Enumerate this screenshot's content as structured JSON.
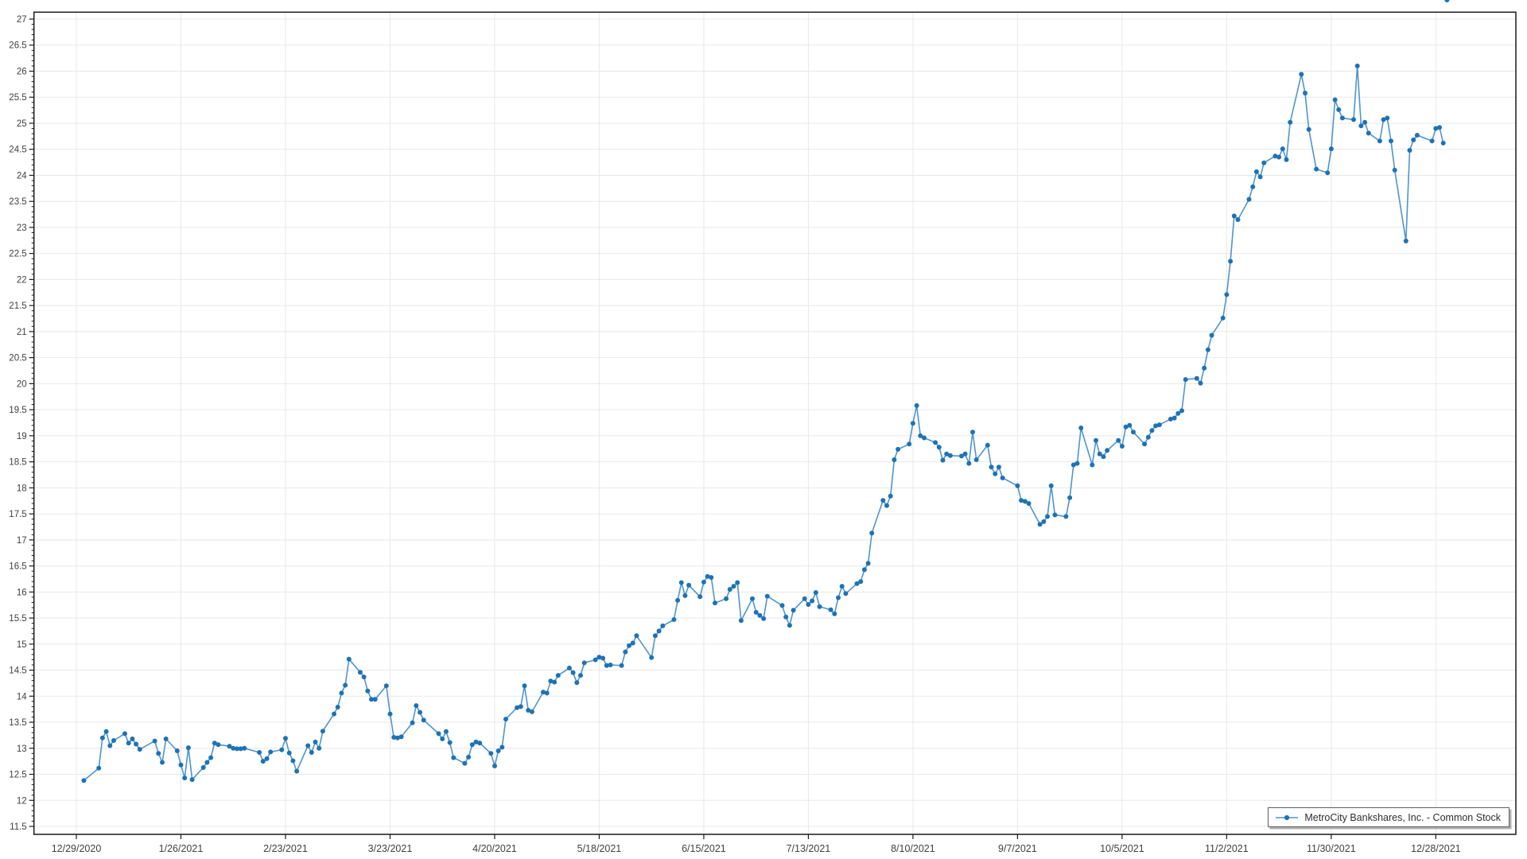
{
  "legend": {
    "label": "MetroCity Bankshares, Inc. - Common Stock"
  },
  "colors": {
    "line": "#4e95cf",
    "marker": "#1e72b4",
    "grid": "#e8e8e8",
    "axis": "#1a1a1a",
    "tick_label": "#404040",
    "background": "#ffffff"
  },
  "y_axis": {
    "min": 11.5,
    "max": 27,
    "major_step": 0.5,
    "minor_step": 0.1,
    "tick_labels": [
      "27",
      "26.5",
      "26",
      "25.5",
      "25",
      "24.5",
      "24",
      "23.5",
      "23",
      "22.5",
      "22",
      "21.5",
      "21",
      "20.5",
      "20",
      "19.5",
      "19",
      "18.5",
      "18",
      "17.5",
      "17",
      "16.5",
      "16",
      "15.5",
      "15",
      "14.5",
      "14",
      "13.5",
      "13",
      "12.5",
      "12",
      "11.5"
    ]
  },
  "x_axis": {
    "tick_labels": [
      "12/29/2020",
      "1/26/2021",
      "2/23/2021",
      "3/23/2021",
      "4/20/2021",
      "5/18/2021",
      "6/15/2021",
      "7/13/2021",
      "8/10/2021",
      "9/7/2021",
      "10/5/2021",
      "11/2/2021",
      "11/30/2021",
      "12/28/2021"
    ]
  },
  "chart_data": {
    "type": "line",
    "title": "",
    "xlabel": "",
    "ylabel": "",
    "ylim": [
      11.5,
      27
    ],
    "grid": true,
    "legend_position": "bottom-right",
    "marker": "circle",
    "series": [
      {
        "name": "MetroCity Bankshares, Inc. - Common Stock",
        "dates": [
          "12/31/2020",
          "1/4/2021",
          "1/5/2021",
          "1/6/2021",
          "1/7/2021",
          "1/8/2021",
          "1/11/2021",
          "1/12/2021",
          "1/13/2021",
          "1/14/2021",
          "1/15/2021",
          "1/19/2021",
          "1/20/2021",
          "1/21/2021",
          "1/22/2021",
          "1/25/2021",
          "1/26/2021",
          "1/27/2021",
          "1/28/2021",
          "1/29/2021",
          "2/1/2021",
          "2/2/2021",
          "2/3/2021",
          "2/4/2021",
          "2/5/2021",
          "2/8/2021",
          "2/9/2021",
          "2/10/2021",
          "2/11/2021",
          "2/12/2021",
          "2/16/2021",
          "2/17/2021",
          "2/18/2021",
          "2/19/2021",
          "2/22/2021",
          "2/23/2021",
          "2/24/2021",
          "2/25/2021",
          "2/26/2021",
          "3/1/2021",
          "3/2/2021",
          "3/3/2021",
          "3/4/2021",
          "3/5/2021",
          "3/8/2021",
          "3/9/2021",
          "3/10/2021",
          "3/11/2021",
          "3/12/2021",
          "3/15/2021",
          "3/16/2021",
          "3/17/2021",
          "3/18/2021",
          "3/19/2021",
          "3/22/2021",
          "3/23/2021",
          "3/24/2021",
          "3/25/2021",
          "3/26/2021",
          "3/29/2021",
          "3/30/2021",
          "3/31/2021",
          "4/1/2021",
          "4/5/2021",
          "4/6/2021",
          "4/7/2021",
          "4/8/2021",
          "4/9/2021",
          "4/12/2021",
          "4/13/2021",
          "4/14/2021",
          "4/15/2021",
          "4/16/2021",
          "4/19/2021",
          "4/20/2021",
          "4/21/2021",
          "4/22/2021",
          "4/23/2021",
          "4/26/2021",
          "4/27/2021",
          "4/28/2021",
          "4/29/2021",
          "4/30/2021",
          "5/3/2021",
          "5/4/2021",
          "5/5/2021",
          "5/6/2021",
          "5/7/2021",
          "5/10/2021",
          "5/11/2021",
          "5/12/2021",
          "5/13/2021",
          "5/14/2021",
          "5/17/2021",
          "5/18/2021",
          "5/19/2021",
          "5/20/2021",
          "5/21/2021",
          "5/24/2021",
          "5/25/2021",
          "5/26/2021",
          "5/27/2021",
          "5/28/2021",
          "6/1/2021",
          "6/2/2021",
          "6/3/2021",
          "6/4/2021",
          "6/7/2021",
          "6/8/2021",
          "6/9/2021",
          "6/10/2021",
          "6/11/2021",
          "6/14/2021",
          "6/15/2021",
          "6/16/2021",
          "6/17/2021",
          "6/18/2021",
          "6/21/2021",
          "6/22/2021",
          "6/23/2021",
          "6/24/2021",
          "6/25/2021",
          "6/28/2021",
          "6/29/2021",
          "6/30/2021",
          "7/1/2021",
          "7/2/2021",
          "7/6/2021",
          "7/7/2021",
          "7/8/2021",
          "7/9/2021",
          "7/12/2021",
          "7/13/2021",
          "7/14/2021",
          "7/15/2021",
          "7/16/2021",
          "7/19/2021",
          "7/20/2021",
          "7/21/2021",
          "7/22/2021",
          "7/23/2021",
          "7/26/2021",
          "7/27/2021",
          "7/28/2021",
          "7/29/2021",
          "7/30/2021",
          "8/2/2021",
          "8/3/2021",
          "8/4/2021",
          "8/5/2021",
          "8/6/2021",
          "8/9/2021",
          "8/10/2021",
          "8/11/2021",
          "8/12/2021",
          "8/13/2021",
          "8/16/2021",
          "8/17/2021",
          "8/18/2021",
          "8/19/2021",
          "8/20/2021",
          "8/23/2021",
          "8/24/2021",
          "8/25/2021",
          "8/26/2021",
          "8/27/2021",
          "8/30/2021",
          "8/31/2021",
          "9/1/2021",
          "9/2/2021",
          "9/3/2021",
          "9/7/2021",
          "9/8/2021",
          "9/9/2021",
          "9/10/2021",
          "9/13/2021",
          "9/14/2021",
          "9/15/2021",
          "9/16/2021",
          "9/17/2021",
          "9/20/2021",
          "9/21/2021",
          "9/22/2021",
          "9/23/2021",
          "9/24/2021",
          "9/27/2021",
          "9/28/2021",
          "9/29/2021",
          "9/30/2021",
          "10/1/2021",
          "10/4/2021",
          "10/5/2021",
          "10/6/2021",
          "10/7/2021",
          "10/8/2021",
          "10/11/2021",
          "10/12/2021",
          "10/13/2021",
          "10/14/2021",
          "10/15/2021",
          "10/18/2021",
          "10/19/2021",
          "10/20/2021",
          "10/21/2021",
          "10/22/2021",
          "10/25/2021",
          "10/26/2021",
          "10/27/2021",
          "10/28/2021",
          "10/29/2021",
          "11/1/2021",
          "11/2/2021",
          "11/3/2021",
          "11/4/2021",
          "11/5/2021",
          "11/8/2021",
          "11/9/2021",
          "11/10/2021",
          "11/11/2021",
          "11/12/2021",
          "11/15/2021",
          "11/16/2021",
          "11/17/2021",
          "11/18/2021",
          "11/19/2021",
          "11/22/2021",
          "11/23/2021",
          "11/24/2021",
          "11/26/2021",
          "11/29/2021",
          "11/30/2021",
          "12/1/2021",
          "12/2/2021",
          "12/3/2021",
          "12/6/2021",
          "12/7/2021",
          "12/8/2021",
          "12/9/2021",
          "12/10/2021",
          "12/13/2021",
          "12/14/2021",
          "12/15/2021",
          "12/16/2021",
          "12/17/2021",
          "12/20/2021",
          "12/21/2021",
          "12/22/2021",
          "12/23/2021",
          "12/27/2021",
          "12/28/2021",
          "12/29/2021",
          "12/30/2021",
          "12/31/2021"
        ],
        "values": [
          12.38,
          12.62,
          13.2,
          13.32,
          13.05,
          13.15,
          13.28,
          13.1,
          13.18,
          13.08,
          12.98,
          13.14,
          12.9,
          12.73,
          13.18,
          12.95,
          12.68,
          12.43,
          13.01,
          12.4,
          12.63,
          12.73,
          12.82,
          13.1,
          13.07,
          13.04,
          13.0,
          12.99,
          12.99,
          13.0,
          12.92,
          12.75,
          12.8,
          12.93,
          12.97,
          13.19,
          12.91,
          12.76,
          12.56,
          13.05,
          12.92,
          13.12,
          13.0,
          13.33,
          13.66,
          13.79,
          14.06,
          14.21,
          14.71,
          14.46,
          14.37,
          14.1,
          13.94,
          13.94,
          14.2,
          13.66,
          13.21,
          13.2,
          13.22,
          13.49,
          13.82,
          13.69,
          13.54,
          13.28,
          13.18,
          13.32,
          13.11,
          12.82,
          12.71,
          12.83,
          13.07,
          13.12,
          13.1,
          12.9,
          12.66,
          12.95,
          13.02,
          13.56,
          13.78,
          13.8,
          14.2,
          13.73,
          13.7,
          14.08,
          14.06,
          14.29,
          14.27,
          14.4,
          14.54,
          14.45,
          14.26,
          14.4,
          14.64,
          14.7,
          14.75,
          14.73,
          14.59,
          14.6,
          14.59,
          14.85,
          14.97,
          15.02,
          15.16,
          14.74,
          15.16,
          15.25,
          15.35,
          15.47,
          15.84,
          16.18,
          15.93,
          16.13,
          15.91,
          16.19,
          16.3,
          16.28,
          15.79,
          15.87,
          16.05,
          16.11,
          16.18,
          15.45,
          15.87,
          15.61,
          15.55,
          15.49,
          15.92,
          15.74,
          15.52,
          15.36,
          15.65,
          15.87,
          15.76,
          15.83,
          15.99,
          15.72,
          15.66,
          15.58,
          15.89,
          16.11,
          15.97,
          16.16,
          16.2,
          16.43,
          16.55,
          17.13,
          17.76,
          17.66,
          17.84,
          18.54,
          18.74,
          18.84,
          19.24,
          19.58,
          19.0,
          18.96,
          18.87,
          18.78,
          18.53,
          18.65,
          18.62,
          18.61,
          18.65,
          18.47,
          19.07,
          18.54,
          18.82,
          18.4,
          18.27,
          18.4,
          18.19,
          18.04,
          17.76,
          17.74,
          17.7,
          17.3,
          17.35,
          17.45,
          18.04,
          17.48,
          17.45,
          17.81,
          18.44,
          18.47,
          19.15,
          18.44,
          18.91,
          18.65,
          18.6,
          18.72,
          18.91,
          18.8,
          19.17,
          19.2,
          19.07,
          18.84,
          18.97,
          19.1,
          19.19,
          19.21,
          19.32,
          19.34,
          19.43,
          19.48,
          20.08,
          20.1,
          20.01,
          20.3,
          20.65,
          20.93,
          21.26,
          21.71,
          22.35,
          23.22,
          23.15,
          23.54,
          23.78,
          24.07,
          23.97,
          24.24,
          24.37,
          24.35,
          24.51,
          24.3,
          25.02,
          25.94,
          25.58,
          24.88,
          24.12,
          24.05,
          24.51,
          25.45,
          25.26,
          25.1,
          25.07,
          26.1,
          24.95,
          25.02,
          24.81,
          24.66,
          25.07,
          25.1,
          24.66,
          24.1,
          22.74,
          24.48,
          24.68,
          24.77,
          24.66,
          24.9,
          24.92,
          24.62
        ]
      }
    ]
  }
}
